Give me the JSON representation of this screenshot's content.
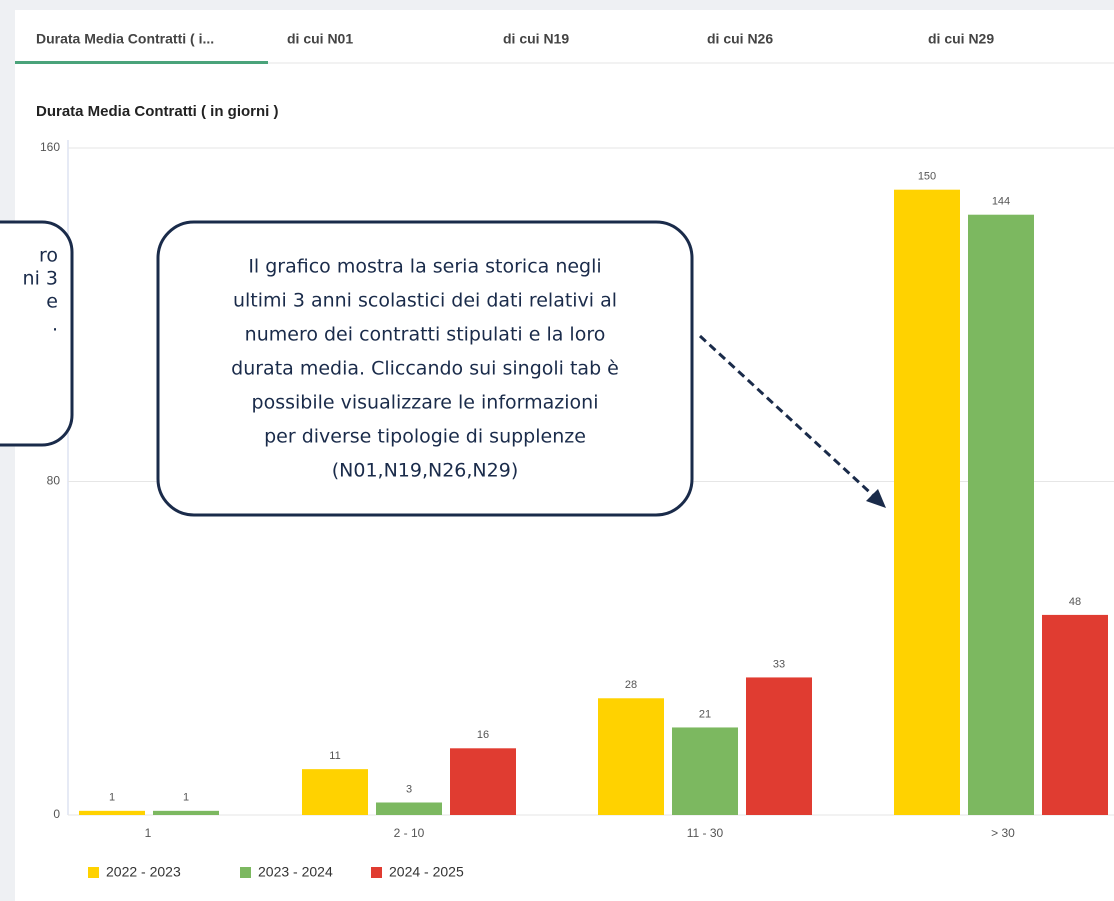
{
  "tabs": [
    "Durata Media Contratti ( i...",
    "di cui N01",
    "di cui N19",
    "di cui N26",
    "di cui N29"
  ],
  "chart_data": {
    "type": "bar",
    "title": "Durata Media Contratti ( in giorni )",
    "categories": [
      "1",
      "2 - 10",
      "11 - 30",
      "> 30"
    ],
    "series": [
      {
        "name": "2022 - 2023",
        "color": "#ffd200",
        "values": [
          1,
          11,
          28,
          150
        ]
      },
      {
        "name": "2023 - 2024",
        "color": "#7cb860",
        "values": [
          1,
          3,
          21,
          144
        ]
      },
      {
        "name": "2024 - 2025",
        "color": "#e03c31",
        "values": [
          null,
          16,
          33,
          48
        ]
      }
    ],
    "ylim": [
      0,
      160
    ],
    "yticks": [
      0,
      80,
      160
    ],
    "grid": true,
    "legend": "bottom-left"
  },
  "callouts": [
    {
      "lines": [
        "ro",
        "ni 3",
        "e",
        "."
      ]
    },
    {
      "lines": [
        "Il grafico mostra la seria storica negli",
        "ultimi 3 anni scolastici dei dati relativi al",
        "numero dei contratti stipulati e la loro",
        "durata media. Cliccando sui singoli tab è",
        "possibile visualizzare le informazioni",
        "per diverse tipologie di supplenze",
        "(N01,N19,N26,N29)"
      ]
    }
  ]
}
